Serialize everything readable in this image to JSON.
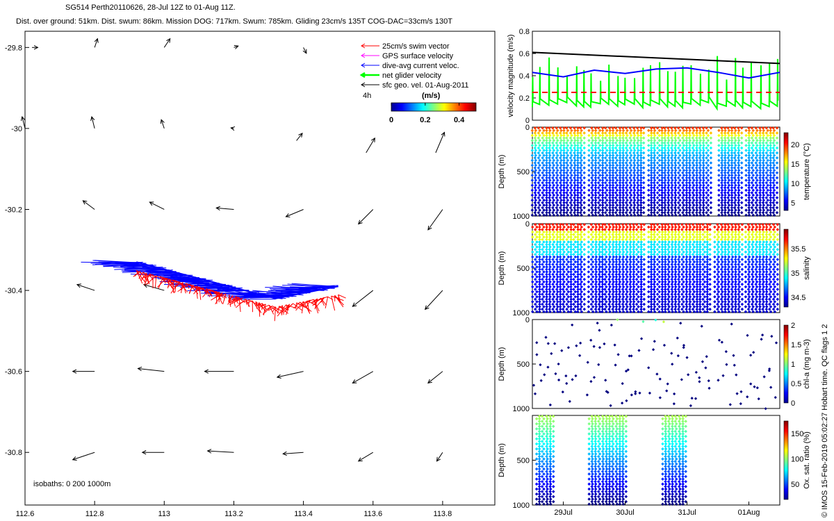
{
  "header": {
    "line1": "SG514 Perth20110626, 28-Jul 12Z to 01-Aug 11Z.",
    "line2": "Dist. over ground: 51km. Dist. swum: 86km. Mission DOG: 717km. Swum: 785km. Gliding 23cm/s 135T COG-DAC=33cm/s 130T"
  },
  "credit": "© IMOS 15-Feb-2019 05:02:27 Hobart time. QC flags 1  2",
  "colors": {
    "swim": "#ff0000",
    "gps": "#ff00ff",
    "dac": "#0000ff",
    "net": "#00ff00",
    "geo": "#000000",
    "depth_profile": "#000080"
  },
  "chart_data": [
    {
      "type": "map-vector",
      "xlim": [
        112.6,
        113.95
      ],
      "ylim": [
        -30.93,
        -29.76
      ],
      "xticks": [
        112.6,
        112.8,
        113,
        113.2,
        113.4,
        113.6,
        113.8
      ],
      "xtick_labels": [
        "112.6",
        "112.8",
        "113",
        "113.2",
        "113.4",
        "113.6",
        "113.8"
      ],
      "yticks": [
        -29.8,
        -30,
        -30.2,
        -30.4,
        -30.6,
        -30.8
      ],
      "ytick_labels": [
        "-29.8",
        "-30",
        "-30.2",
        "-30.4",
        "-30.6",
        "-30.8"
      ],
      "legend": {
        "placement": "top-right",
        "entries": [
          {
            "label": "25cm/s swim vector",
            "color": "#ff0000"
          },
          {
            "label": "GPS surface velocity",
            "color": "#ff00ff"
          },
          {
            "label": "dive-avg current veloc.",
            "color": "#0000ff"
          },
          {
            "label": "net glider velocity",
            "color": "#00ff00"
          },
          {
            "label": "sfc geo. vel. 01-Aug-2011",
            "color": "#000000"
          }
        ],
        "note": "4h"
      },
      "colorbar": {
        "label": "(m/s)",
        "ticks": [
          "0",
          "0.2",
          "0.4"
        ],
        "range": [
          0,
          0.5
        ]
      },
      "isobaths_label": "isobaths: 0   200  1000m",
      "geo_vectors": [
        {
          "lon": 112.62,
          "lat": -29.8,
          "u": 0.02,
          "v": 0.0
        },
        {
          "lon": 112.8,
          "lat": -29.8,
          "u": 0.01,
          "v": 0.03
        },
        {
          "lon": 113.0,
          "lat": -29.8,
          "u": 0.02,
          "v": 0.03
        },
        {
          "lon": 113.2,
          "lat": -29.8,
          "u": 0.015,
          "v": 0.005
        },
        {
          "lon": 113.4,
          "lat": -29.8,
          "u": 0.01,
          "v": -0.02
        },
        {
          "lon": 112.6,
          "lat": -30.0,
          "u": -0.01,
          "v": 0.04
        },
        {
          "lon": 112.8,
          "lat": -30.0,
          "u": -0.01,
          "v": 0.04
        },
        {
          "lon": 113.0,
          "lat": -30.0,
          "u": -0.01,
          "v": 0.03
        },
        {
          "lon": 113.2,
          "lat": -30.0,
          "u": -0.01,
          "v": 0.002
        },
        {
          "lon": 113.38,
          "lat": -30.03,
          "u": 0.02,
          "v": 0.025
        },
        {
          "lon": 113.58,
          "lat": -30.06,
          "u": 0.03,
          "v": 0.05
        },
        {
          "lon": 113.78,
          "lat": -30.06,
          "u": 0.03,
          "v": 0.07
        },
        {
          "lon": 112.8,
          "lat": -30.2,
          "u": -0.04,
          "v": 0.03
        },
        {
          "lon": 113.0,
          "lat": -30.2,
          "u": -0.05,
          "v": 0.025
        },
        {
          "lon": 113.2,
          "lat": -30.2,
          "u": -0.06,
          "v": 0.005
        },
        {
          "lon": 113.4,
          "lat": -30.2,
          "u": -0.06,
          "v": -0.025
        },
        {
          "lon": 113.6,
          "lat": -30.2,
          "u": -0.05,
          "v": -0.05
        },
        {
          "lon": 113.8,
          "lat": -30.2,
          "u": -0.05,
          "v": -0.07
        },
        {
          "lon": 112.8,
          "lat": -30.4,
          "u": -0.06,
          "v": 0.02
        },
        {
          "lon": 113.0,
          "lat": -30.4,
          "u": -0.07,
          "v": 0.02
        },
        {
          "lon": 113.6,
          "lat": -30.4,
          "u": -0.07,
          "v": -0.055
        },
        {
          "lon": 113.8,
          "lat": -30.4,
          "u": -0.06,
          "v": -0.065
        },
        {
          "lon": 112.8,
          "lat": -30.6,
          "u": -0.075,
          "v": 0.0
        },
        {
          "lon": 113.0,
          "lat": -30.6,
          "u": -0.09,
          "v": 0.01
        },
        {
          "lon": 113.2,
          "lat": -30.6,
          "u": -0.1,
          "v": 0.0
        },
        {
          "lon": 113.4,
          "lat": -30.6,
          "u": -0.09,
          "v": -0.02
        },
        {
          "lon": 113.6,
          "lat": -30.6,
          "u": -0.07,
          "v": -0.04
        },
        {
          "lon": 113.8,
          "lat": -30.6,
          "u": -0.05,
          "v": -0.04
        },
        {
          "lon": 112.8,
          "lat": -30.8,
          "u": -0.075,
          "v": -0.025
        },
        {
          "lon": 113.0,
          "lat": -30.8,
          "u": -0.075,
          "v": 0.0
        },
        {
          "lon": 113.2,
          "lat": -30.8,
          "u": -0.09,
          "v": 0.005
        },
        {
          "lon": 113.4,
          "lat": -30.8,
          "u": -0.07,
          "v": -0.005
        },
        {
          "lon": 113.6,
          "lat": -30.8,
          "u": -0.05,
          "v": -0.03
        },
        {
          "lon": 113.8,
          "lat": -30.8,
          "u": -0.02,
          "v": -0.03
        }
      ],
      "glider_track": {
        "start": [
          112.92,
          -30.33
        ],
        "end": [
          113.5,
          -30.39
        ],
        "mid": [
          113.32,
          -30.42
        ]
      }
    },
    {
      "type": "line",
      "ylabel": "velocity magnitude (m/s)",
      "ylim": [
        0,
        0.8
      ],
      "yticks": [
        0,
        0.2,
        0.4,
        0.6,
        0.8
      ],
      "xlim_days": [
        0,
        4
      ],
      "series": [
        {
          "color": "#000000",
          "x": [
            0,
            4
          ],
          "y": [
            0.61,
            0.51
          ]
        },
        {
          "color": "#0000ff",
          "x": [
            0,
            0.5,
            1,
            1.5,
            2,
            2.5,
            3,
            3.5,
            4
          ],
          "y": [
            0.43,
            0.39,
            0.45,
            0.42,
            0.46,
            0.47,
            0.43,
            0.38,
            0.43
          ]
        },
        {
          "color": "#ff0000",
          "dash": true,
          "x": [
            0,
            4
          ],
          "y": [
            0.25,
            0.25
          ]
        }
      ]
    },
    {
      "type": "scatter",
      "ylabel": "Depth (m)",
      "cbar_label": "temperature (°C)",
      "cbar_ticks": [
        "5",
        "10",
        "15",
        "20"
      ],
      "cbar_range": [
        3,
        23
      ],
      "ylim": [
        0,
        1000
      ],
      "yticks": [
        "0",
        "500",
        "1000"
      ]
    },
    {
      "type": "scatter",
      "ylabel": "Depth (m)",
      "cbar_label": "salinity",
      "cbar_ticks": [
        "34.5",
        "35",
        "35.5"
      ],
      "cbar_range": [
        34.3,
        35.9
      ],
      "ylim": [
        0,
        1000
      ],
      "yticks": [
        "0",
        "500",
        "1000"
      ]
    },
    {
      "type": "scatter",
      "ylabel": "Depth (m)",
      "cbar_label": "chl-a (mg m-3)",
      "cbar_ticks": [
        "0",
        "0.5",
        "1",
        "1.5",
        "2"
      ],
      "cbar_range": [
        0,
        2
      ],
      "ylim": [
        0,
        1000
      ],
      "yticks": [
        "0",
        "500",
        "1000"
      ]
    },
    {
      "type": "scatter",
      "ylabel": "Depth (m)",
      "cbar_label": "Ox. sat. ratio (%)",
      "cbar_ticks": [
        "50",
        "100",
        "150"
      ],
      "cbar_range": [
        20,
        175
      ],
      "ylim": [
        0,
        1000
      ],
      "yticks": [
        "500",
        "1000"
      ],
      "xtick_labels": [
        "29Jul",
        "30Jul",
        "31Jul",
        "01Aug"
      ]
    }
  ]
}
